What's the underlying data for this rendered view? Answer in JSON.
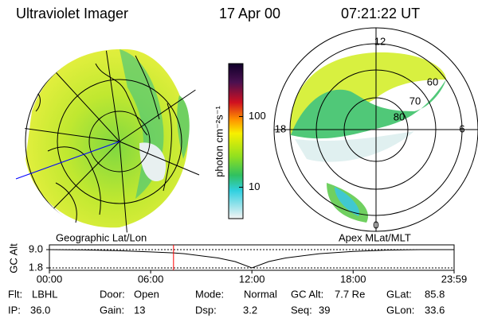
{
  "header": {
    "title": "Ultraviolet Imager",
    "date": "17 Apr 00",
    "time": "07:21:22 UT"
  },
  "colorbar": {
    "label": "photon cm⁻²s⁻¹",
    "log": true,
    "lim": [
      3.6,
      560
    ],
    "ticks": [
      10,
      100
    ]
  },
  "geo_panel": {
    "label": "Geographic Lat/Lon"
  },
  "apex_panel": {
    "label": "Apex MLat/MLT",
    "mlt_labels": [
      "12",
      "6",
      "0",
      "18"
    ],
    "lat_labels": [
      "60",
      "70",
      "80"
    ]
  },
  "altitude_chart": {
    "ylabel": "GC Alt",
    "ylim": [
      1.8,
      9.0
    ],
    "yticks": [
      {
        "value": 9.0,
        "label": "9.0"
      },
      {
        "value": 1.8,
        "label": "1.8"
      }
    ],
    "xlim": [
      0,
      23.983
    ],
    "xticks": [
      {
        "value": 0,
        "label": "00:00"
      },
      {
        "value": 6,
        "label": "06:00"
      },
      {
        "value": 12,
        "label": "12:00"
      },
      {
        "value": 18,
        "label": "18:00"
      },
      {
        "value": 23.983,
        "label": "23:59"
      }
    ],
    "x": [
      0,
      2,
      4,
      6,
      7.356,
      8,
      10,
      11,
      12,
      13,
      14,
      16,
      18,
      20,
      22,
      23.983
    ],
    "values": [
      9.0,
      8.9,
      8.6,
      8.1,
      7.7,
      7.4,
      5.7,
      4.3,
      1.8,
      4.3,
      5.7,
      7.4,
      8.3,
      8.8,
      9.0,
      9.0
    ],
    "current_time": 7.356,
    "line_color": "#000000",
    "marker_color": "#ff0000"
  },
  "footer": [
    {
      "label": "Flt:",
      "value": "LBHL"
    },
    {
      "label": "Door:",
      "value": "Open"
    },
    {
      "label": "Mode:",
      "value": "Normal"
    },
    {
      "label": "GC Alt:",
      "value": "7.7 Re"
    },
    {
      "label": "GLat:",
      "value": "85.8"
    },
    {
      "label": "IP:",
      "value": "36.0"
    },
    {
      "label": "Gain:",
      "value": "13"
    },
    {
      "label": "Dsp:",
      "value": "3.2"
    },
    {
      "label": "Seq:",
      "value": "39"
    },
    {
      "label": "GLon:",
      "value": "33.6"
    }
  ]
}
